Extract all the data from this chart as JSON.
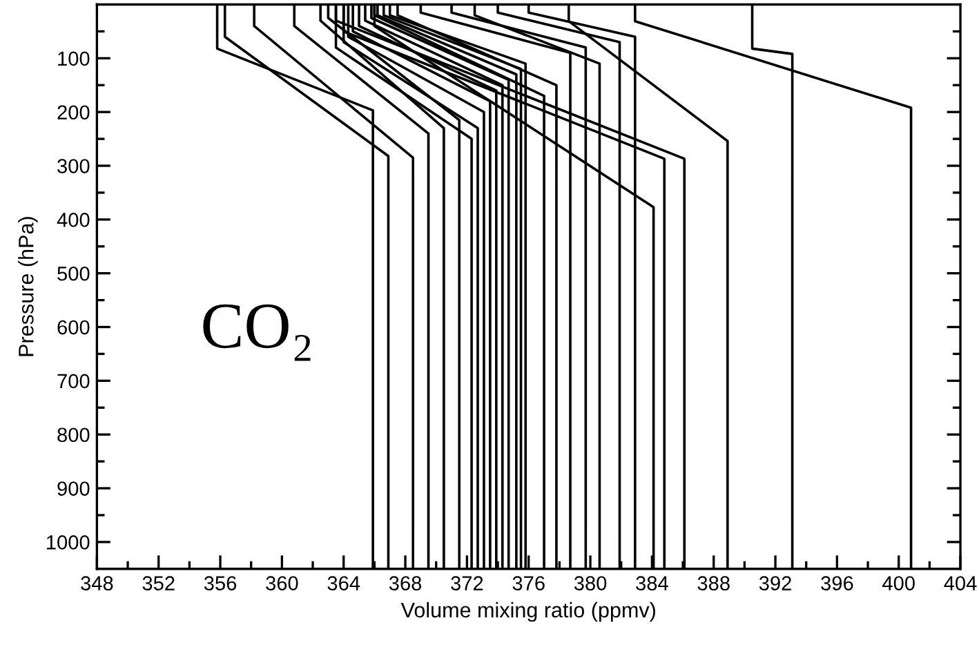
{
  "chart_data": {
    "type": "line",
    "xlabel": "Volume mixing ratio (ppmv)",
    "ylabel": "Pressure (hPa)",
    "annotations": [
      "CO₂"
    ],
    "xlim": [
      348,
      404
    ],
    "ylim": [
      1050,
      0
    ],
    "xticks": [
      348,
      {
        "value": 350,
        "label": null
      },
      352,
      {
        "value": 354,
        "label": null
      },
      356,
      {
        "value": 358,
        "label": null
      },
      360,
      {
        "value": 362,
        "label": null
      },
      364,
      {
        "value": 366,
        "label": null
      },
      368,
      {
        "value": 370,
        "label": null
      },
      372,
      {
        "value": 374,
        "label": null
      },
      376,
      {
        "value": 378,
        "label": null
      },
      380,
      {
        "value": 382,
        "label": null
      },
      384,
      {
        "value": 386,
        "label": null
      },
      388,
      {
        "value": 390,
        "label": null
      },
      392,
      {
        "value": 394,
        "label": null
      },
      396,
      {
        "value": 398,
        "label": null
      },
      400,
      {
        "value": 402,
        "label": null
      },
      404
    ],
    "yticks": [
      {
        "value": 50,
        "label": null
      },
      100,
      {
        "value": 150,
        "label": null
      },
      200,
      {
        "value": 250,
        "label": null
      },
      300,
      {
        "value": 350,
        "label": null
      },
      400,
      {
        "value": 450,
        "label": null
      },
      500,
      {
        "value": 550,
        "label": null
      },
      600,
      {
        "value": 650,
        "label": null
      },
      700,
      {
        "value": 750,
        "label": null
      },
      800,
      {
        "value": 850,
        "label": null
      },
      900,
      {
        "value": 950,
        "label": null
      },
      1000
    ],
    "grid": false,
    "marker": "none",
    "line_style": "solid",
    "series": [
      {
        "color": "#000000",
        "x": [
          355.8,
          355.8,
          365.9,
          365.9
        ],
        "values": [
          0,
          82,
          197,
          1050
        ]
      },
      {
        "color": "#000000",
        "x": [
          356.3,
          356.3,
          366.9,
          366.9
        ],
        "values": [
          0,
          60,
          282,
          1050
        ]
      },
      {
        "color": "#000000",
        "x": [
          358.2,
          358.2,
          368.5,
          368.5
        ],
        "values": [
          0,
          40,
          285,
          1050
        ]
      },
      {
        "color": "#000000",
        "x": [
          360.8,
          360.8,
          369.5,
          369.5
        ],
        "values": [
          0,
          40,
          240,
          1050
        ]
      },
      {
        "color": "#000000",
        "x": [
          362.5,
          362.5,
          370.5,
          370.5
        ],
        "values": [
          0,
          30,
          230,
          1050
        ]
      },
      {
        "color": "#000000",
        "x": [
          363.0,
          363.0,
          371.5,
          371.5
        ],
        "values": [
          0,
          25,
          215,
          1050
        ]
      },
      {
        "color": "#000000",
        "x": [
          363.5,
          363.5,
          372.3,
          372.3
        ],
        "values": [
          0,
          80,
          250,
          1050
        ]
      },
      {
        "color": "#000000",
        "x": [
          364.0,
          364.0,
          372.7,
          372.7
        ],
        "values": [
          0,
          70,
          230,
          1050
        ]
      },
      {
        "color": "#000000",
        "x": [
          364.3,
          364.3,
          373.1,
          373.1
        ],
        "values": [
          0,
          60,
          200,
          1050
        ]
      },
      {
        "color": "#000000",
        "x": [
          364.6,
          364.6,
          373.5,
          373.5
        ],
        "values": [
          0,
          50,
          180,
          1050
        ]
      },
      {
        "color": "#000000",
        "x": [
          365.0,
          365.0,
          373.9,
          373.9
        ],
        "values": [
          0,
          40,
          160,
          1050
        ]
      },
      {
        "color": "#000000",
        "x": [
          365.4,
          365.4,
          374.3,
          374.3
        ],
        "values": [
          0,
          30,
          150,
          1050
        ]
      },
      {
        "color": "#000000",
        "x": [
          365.8,
          365.8,
          374.7,
          374.7
        ],
        "values": [
          0,
          25,
          140,
          1050
        ]
      },
      {
        "color": "#000000",
        "x": [
          366.2,
          366.2,
          375.2,
          375.2
        ],
        "values": [
          0,
          20,
          130,
          1050
        ]
      },
      {
        "color": "#000000",
        "x": [
          366.6,
          366.6,
          375.5,
          375.5
        ],
        "values": [
          0,
          20,
          120,
          1050
        ]
      },
      {
        "color": "#000000",
        "x": [
          367.0,
          367.0,
          375.8,
          375.8
        ],
        "values": [
          0,
          20,
          110,
          1050
        ]
      },
      {
        "color": "#000000",
        "x": [
          366.0,
          366.0,
          377.0,
          377.0
        ],
        "values": [
          0,
          20,
          170,
          1050
        ]
      },
      {
        "color": "#000000",
        "x": [
          367.5,
          367.5,
          377.8,
          377.8
        ],
        "values": [
          0,
          20,
          150,
          1050
        ]
      },
      {
        "color": "#000000",
        "x": [
          369.0,
          369.0,
          378.7,
          378.7
        ],
        "values": [
          0,
          15,
          90,
          1050
        ]
      },
      {
        "color": "#000000",
        "x": [
          371.0,
          371.0,
          379.7,
          379.7
        ],
        "values": [
          0,
          15,
          80,
          1050
        ]
      },
      {
        "color": "#000000",
        "x": [
          372.5,
          372.5,
          380.6,
          380.6
        ],
        "values": [
          0,
          20,
          110,
          1050
        ]
      },
      {
        "color": "#000000",
        "x": [
          374.0,
          374.0,
          381.9,
          381.9
        ],
        "values": [
          0,
          15,
          70,
          1050
        ]
      },
      {
        "color": "#000000",
        "x": [
          376.0,
          376.0,
          382.9,
          382.9
        ],
        "values": [
          0,
          15,
          60,
          1050
        ]
      },
      {
        "color": "#000000",
        "x": [
          366.0,
          366.0,
          384.1,
          384.1
        ],
        "values": [
          0,
          40,
          377,
          1050
        ]
      },
      {
        "color": "#000000",
        "x": [
          364.0,
          364.0,
          384.8,
          384.8
        ],
        "values": [
          0,
          50,
          287,
          1050
        ]
      },
      {
        "color": "#000000",
        "x": [
          363.5,
          363.5,
          386.1,
          386.1
        ],
        "values": [
          0,
          30,
          287,
          1050
        ]
      },
      {
        "color": "#000000",
        "x": [
          378.6,
          378.6,
          388.9,
          388.9
        ],
        "values": [
          0,
          31,
          254,
          1050
        ]
      },
      {
        "color": "#000000",
        "x": [
          390.5,
          390.5,
          393.1,
          393.1
        ],
        "values": [
          0,
          82,
          92,
          1050
        ]
      },
      {
        "color": "#000000",
        "x": [
          382.9,
          382.9,
          400.8,
          400.8
        ],
        "values": [
          0,
          31,
          192,
          1050
        ]
      }
    ]
  }
}
